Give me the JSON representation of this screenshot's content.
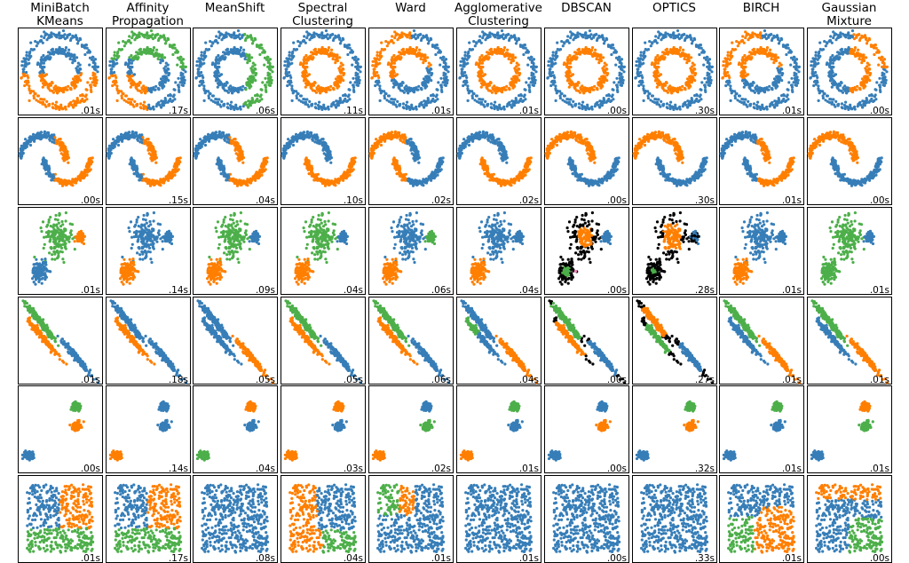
{
  "chart_data": {
    "type": "scatter",
    "grid": false,
    "axes_visible": false,
    "algorithms": [
      "MiniBatch\nKMeans",
      "Affinity\nPropagation",
      "MeanShift",
      "Spectral\nClustering",
      "Ward",
      "Agglomerative\nClustering",
      "DBSCAN",
      "OPTICS",
      "BIRCH",
      "Gaussian\nMixture"
    ],
    "timings": [
      [
        ".01s",
        ".17s",
        ".06s",
        ".11s",
        ".01s",
        ".01s",
        ".00s",
        ".30s",
        ".01s",
        ".00s"
      ],
      [
        ".00s",
        ".15s",
        ".04s",
        ".10s",
        ".02s",
        ".02s",
        ".00s",
        ".30s",
        ".01s",
        ".00s"
      ],
      [
        ".01s",
        ".14s",
        ".09s",
        ".04s",
        ".06s",
        ".04s",
        ".00s",
        ".28s",
        ".01s",
        ".01s"
      ],
      [
        ".01s",
        ".18s",
        ".05s",
        ".05s",
        ".06s",
        ".04s",
        ".00s",
        ".27s",
        ".01s",
        ".01s"
      ],
      [
        ".00s",
        ".14s",
        ".04s",
        ".03s",
        ".02s",
        ".01s",
        ".00s",
        ".32s",
        ".01s",
        ".01s"
      ],
      [
        ".01s",
        ".17s",
        ".08s",
        ".04s",
        ".01s",
        ".01s",
        ".00s",
        ".33s",
        ".01s",
        ".00s"
      ]
    ],
    "colors": {
      "blue": "#377eb8",
      "orange": "#ff7f00",
      "green": "#4daf4a",
      "pink": "#f781bf",
      "noise": "#000000"
    },
    "row_datasets": [
      "noisy_circles",
      "noisy_moons",
      "varied_blobs",
      "anisotropic_blobs",
      "blobs",
      "no_structure"
    ]
  }
}
